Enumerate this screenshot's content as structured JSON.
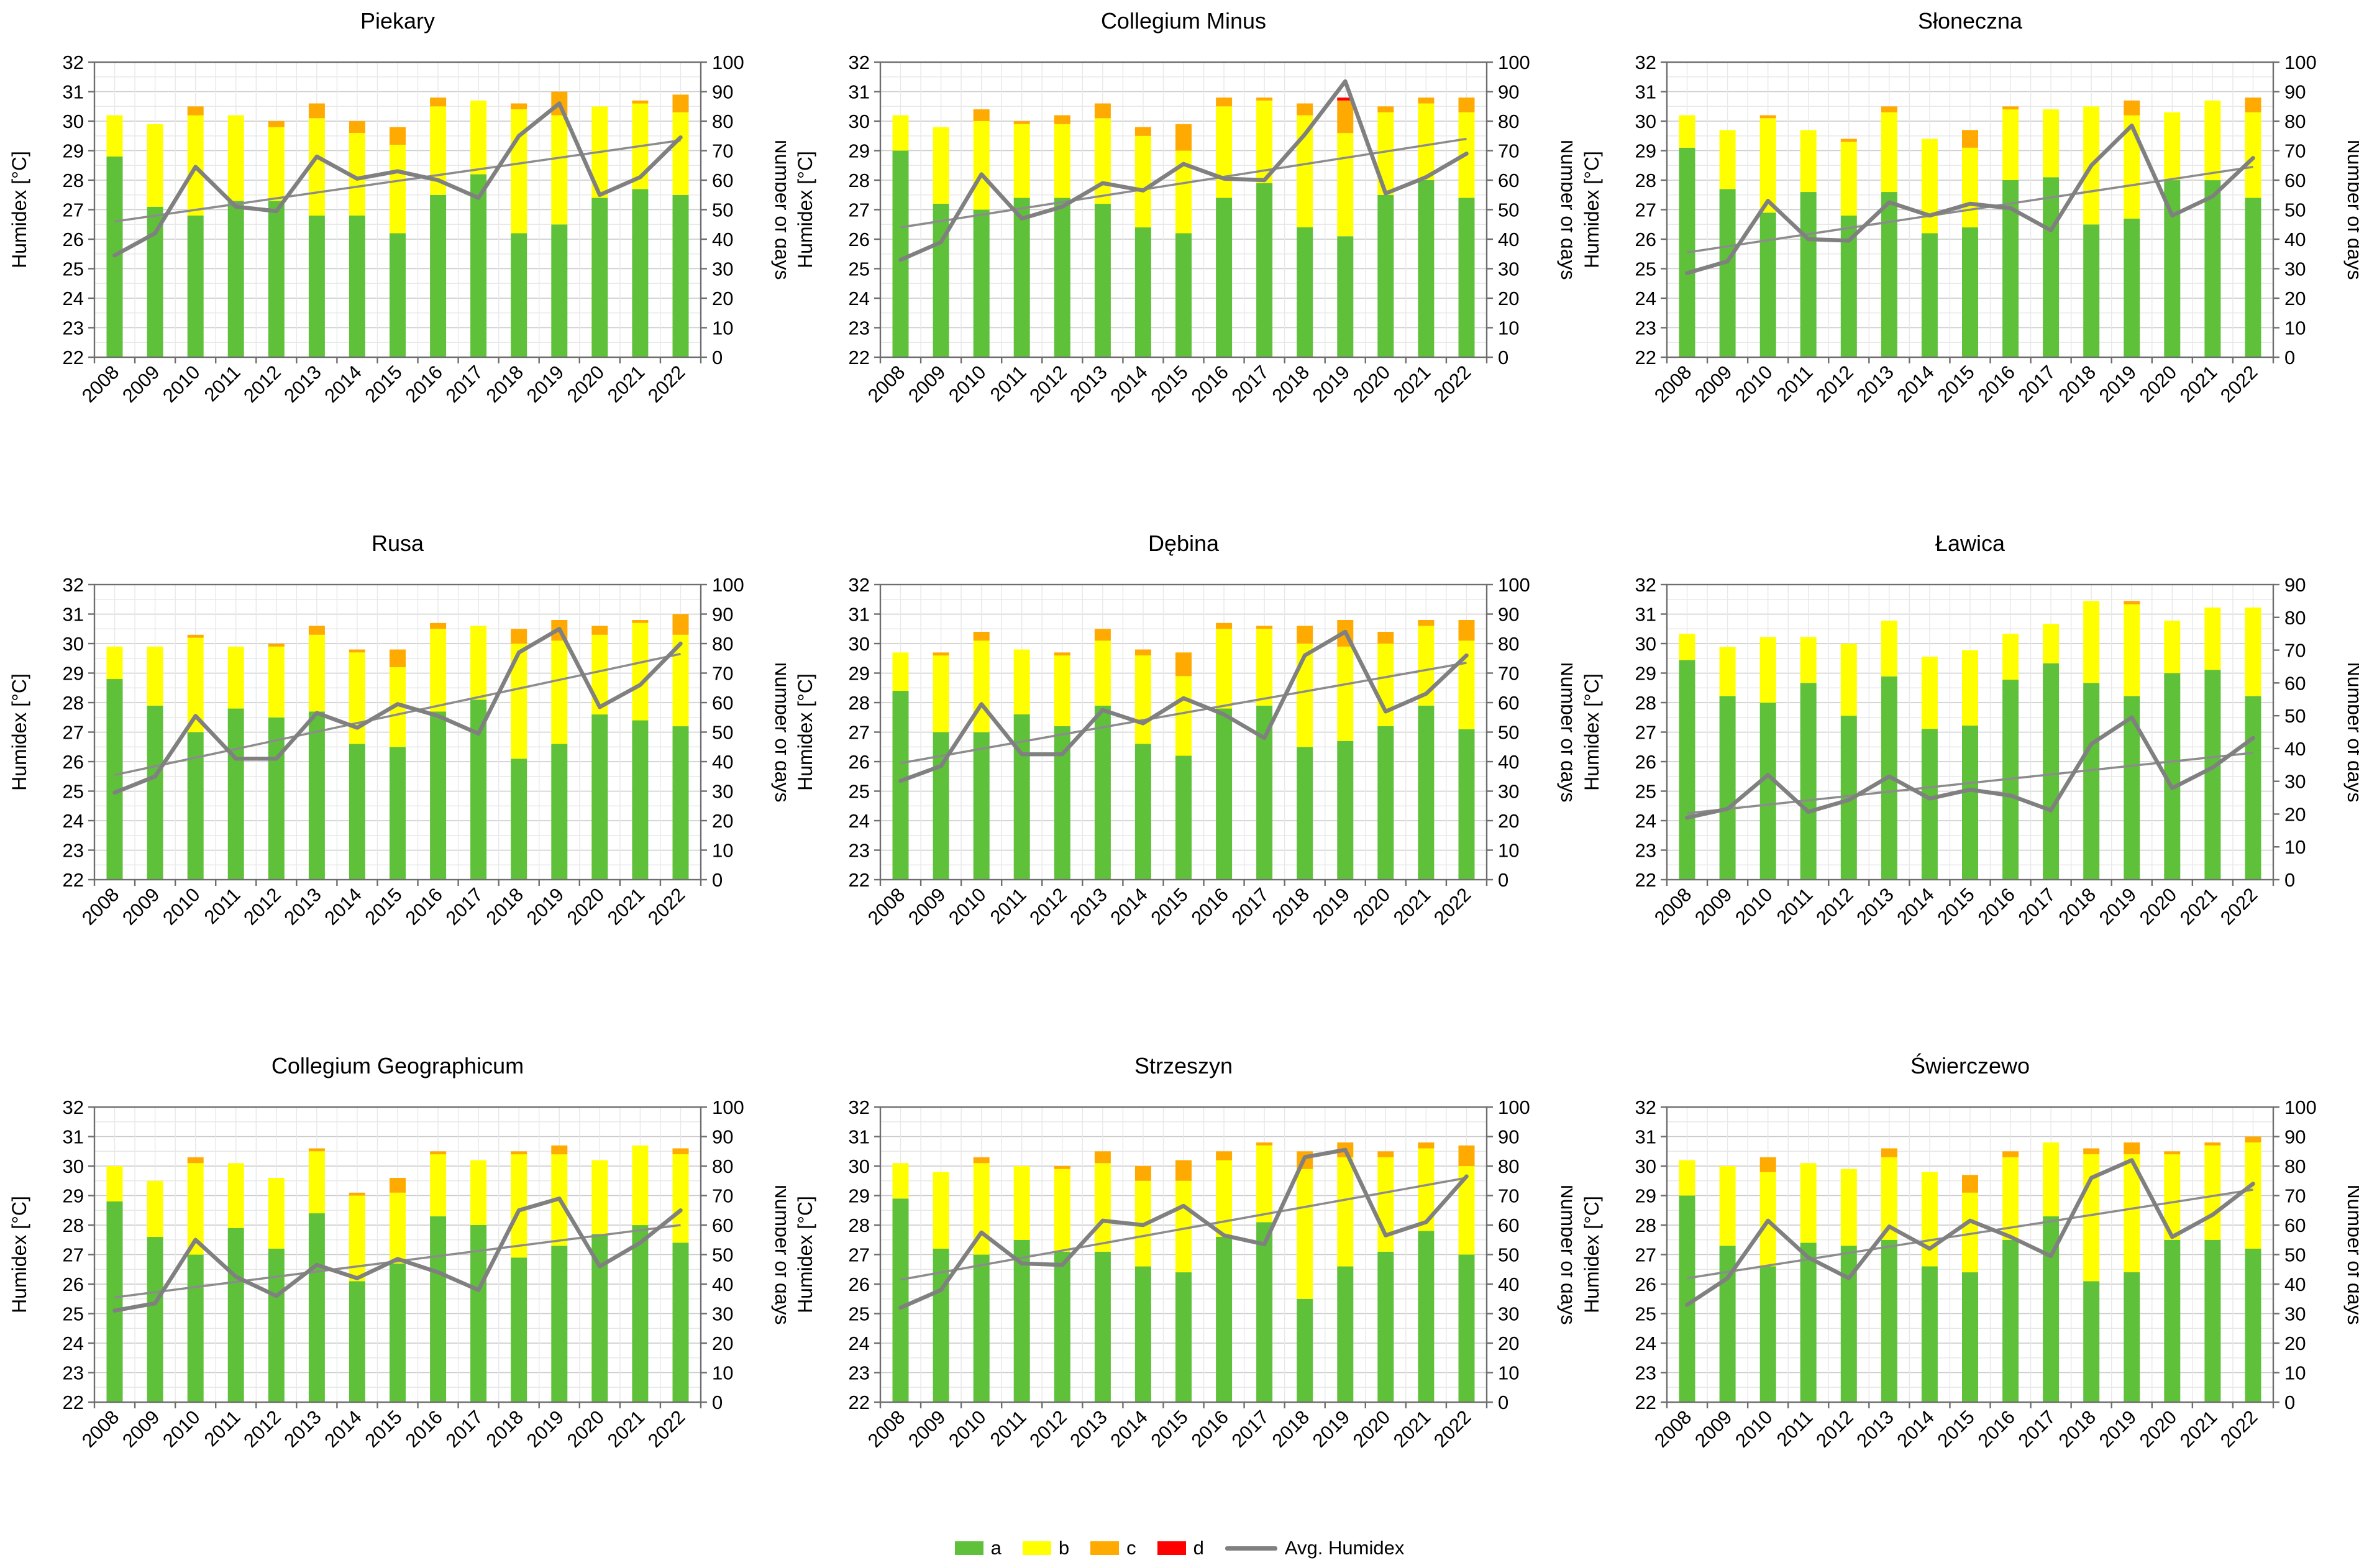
{
  "axes": {
    "left_label": "Humidex [°C]",
    "right_label": "Number of days",
    "left_min": 22,
    "left_max": 32,
    "left_tick_step": 1,
    "right_tick_step": 10
  },
  "colors": {
    "a": "#5FC13A",
    "b": "#FFFF00",
    "c": "#FFAA00",
    "d": "#FF0000",
    "avg": "#808080",
    "trend": "#8C8C8C",
    "grid_major": "#C9C9C9",
    "grid_minor": "#E8E8E8",
    "axis": "#6E6E6E"
  },
  "legend": {
    "items": [
      {
        "key": "a",
        "label": "a",
        "type": "swatch"
      },
      {
        "key": "b",
        "label": "b",
        "type": "swatch"
      },
      {
        "key": "c",
        "label": "c",
        "type": "swatch"
      },
      {
        "key": "d",
        "label": "d",
        "type": "swatch"
      },
      {
        "key": "avg",
        "label": "Avg. Humidex",
        "type": "line"
      }
    ]
  },
  "years": [
    "2008",
    "2009",
    "2010",
    "2011",
    "2012",
    "2013",
    "2014",
    "2015",
    "2016",
    "2017",
    "2018",
    "2019",
    "2020",
    "2021",
    "2022"
  ],
  "chart_data": [
    {
      "type": "bar+line",
      "title": "Piekary",
      "right_axis_max": 100,
      "series": [
        {
          "name": "a",
          "values": [
            68,
            51,
            48,
            53,
            53,
            48,
            48,
            42,
            55,
            62,
            42,
            45,
            54,
            57,
            55
          ]
        },
        {
          "name": "b",
          "values": [
            14,
            28,
            34,
            29,
            25,
            33,
            28,
            30,
            30,
            25,
            42,
            37,
            31,
            29,
            28
          ]
        },
        {
          "name": "c",
          "values": [
            0,
            0,
            3,
            0,
            2,
            5,
            4,
            6,
            3,
            0,
            2,
            8,
            0,
            1,
            6
          ]
        },
        {
          "name": "d",
          "values": [
            0,
            0,
            0,
            0,
            0,
            0,
            0,
            0,
            0,
            0,
            0,
            0,
            0,
            0,
            0
          ]
        }
      ],
      "avg_humidex": [
        25.45,
        26.2,
        28.45,
        27.1,
        26.95,
        28.8,
        28.05,
        28.3,
        28.0,
        27.4,
        29.5,
        30.6,
        27.5,
        28.1,
        29.45
      ],
      "trend_line": {
        "start": 26.6,
        "end": 29.35
      }
    },
    {
      "type": "bar+line",
      "title": "Collegium Minus",
      "right_axis_max": 100,
      "series": [
        {
          "name": "a",
          "values": [
            70,
            52,
            50,
            54,
            54,
            52,
            44,
            42,
            54,
            59,
            44,
            41,
            55,
            60,
            54
          ]
        },
        {
          "name": "b",
          "values": [
            12,
            26,
            30,
            25,
            25,
            29,
            31,
            28,
            31,
            28,
            38,
            35,
            28,
            26,
            29
          ]
        },
        {
          "name": "c",
          "values": [
            0,
            0,
            4,
            1,
            3,
            5,
            3,
            9,
            3,
            1,
            4,
            11,
            2,
            2,
            5
          ]
        },
        {
          "name": "d",
          "values": [
            0,
            0,
            0,
            0,
            0,
            0,
            0,
            0,
            0,
            0,
            0,
            1,
            0,
            0,
            0
          ]
        }
      ],
      "avg_humidex": [
        25.3,
        25.9,
        28.2,
        26.7,
        27.1,
        27.9,
        27.65,
        28.55,
        28.05,
        28.0,
        29.55,
        31.35,
        27.55,
        28.1,
        28.9
      ],
      "trend_line": {
        "start": 26.4,
        "end": 29.4
      }
    },
    {
      "type": "bar+line",
      "title": "Słoneczna",
      "right_axis_max": 100,
      "series": [
        {
          "name": "a",
          "values": [
            71,
            57,
            49,
            56,
            48,
            56,
            42,
            44,
            60,
            61,
            45,
            47,
            60,
            60,
            54
          ]
        },
        {
          "name": "b",
          "values": [
            11,
            20,
            32,
            21,
            25,
            27,
            32,
            27,
            24,
            23,
            40,
            35,
            23,
            27,
            29
          ]
        },
        {
          "name": "c",
          "values": [
            0,
            0,
            1,
            0,
            1,
            2,
            0,
            6,
            1,
            0,
            0,
            5,
            0,
            0,
            5
          ]
        },
        {
          "name": "d",
          "values": [
            0,
            0,
            0,
            0,
            0,
            0,
            0,
            0,
            0,
            0,
            0,
            0,
            0,
            0,
            0
          ]
        }
      ],
      "avg_humidex": [
        24.85,
        25.25,
        27.3,
        26.0,
        25.95,
        27.25,
        26.8,
        27.2,
        27.05,
        26.3,
        28.5,
        29.85,
        26.8,
        27.45,
        28.75
      ],
      "trend_line": {
        "start": 25.55,
        "end": 28.45
      }
    },
    {
      "type": "bar+line",
      "title": "Rusa",
      "right_axis_max": 100,
      "series": [
        {
          "name": "a",
          "values": [
            68,
            59,
            50,
            58,
            55,
            57,
            46,
            45,
            57,
            61,
            41,
            46,
            56,
            54,
            52
          ]
        },
        {
          "name": "b",
          "values": [
            11,
            20,
            32,
            21,
            24,
            26,
            31,
            27,
            28,
            25,
            39,
            35,
            27,
            33,
            31
          ]
        },
        {
          "name": "c",
          "values": [
            0,
            0,
            1,
            0,
            1,
            3,
            1,
            6,
            2,
            0,
            5,
            7,
            3,
            1,
            7
          ]
        },
        {
          "name": "d",
          "values": [
            0,
            0,
            0,
            0,
            0,
            0,
            0,
            0,
            0,
            0,
            0,
            0,
            0,
            0,
            0
          ]
        }
      ],
      "avg_humidex": [
        24.95,
        25.5,
        27.55,
        26.1,
        26.1,
        27.65,
        27.15,
        27.95,
        27.55,
        26.95,
        29.7,
        30.5,
        27.85,
        28.6,
        30.0
      ],
      "trend_line": {
        "start": 25.55,
        "end": 29.65
      }
    },
    {
      "type": "bar+line",
      "title": "Dębina",
      "right_axis_max": 100,
      "series": [
        {
          "name": "a",
          "values": [
            64,
            50,
            50,
            56,
            52,
            59,
            46,
            42,
            58,
            59,
            45,
            47,
            52,
            59,
            51
          ]
        },
        {
          "name": "b",
          "values": [
            13,
            26,
            31,
            22,
            24,
            22,
            30,
            27,
            27,
            26,
            35,
            32,
            28,
            27,
            30
          ]
        },
        {
          "name": "c",
          "values": [
            0,
            1,
            3,
            0,
            1,
            4,
            2,
            8,
            2,
            1,
            6,
            9,
            4,
            2,
            7
          ]
        },
        {
          "name": "d",
          "values": [
            0,
            0,
            0,
            0,
            0,
            0,
            0,
            0,
            0,
            0,
            0,
            0,
            0,
            0,
            0
          ]
        }
      ],
      "avg_humidex": [
        25.35,
        25.85,
        27.95,
        26.25,
        26.25,
        27.75,
        27.3,
        28.15,
        27.6,
        26.8,
        29.6,
        30.4,
        27.7,
        28.3,
        29.6
      ],
      "trend_line": {
        "start": 25.95,
        "end": 29.35
      }
    },
    {
      "type": "bar+line",
      "title": "Ławica",
      "right_axis_max": 90,
      "series": [
        {
          "name": "a",
          "values": [
            67,
            56,
            54,
            60,
            50,
            62,
            46,
            47,
            61,
            66,
            60,
            56,
            63,
            64,
            56
          ]
        },
        {
          "name": "b",
          "values": [
            8,
            15,
            20,
            14,
            22,
            17,
            22,
            23,
            14,
            12,
            25,
            28,
            16,
            19,
            27
          ]
        },
        {
          "name": "c",
          "values": [
            0,
            0,
            0,
            0,
            0,
            0,
            0,
            0,
            0,
            0,
            0,
            1,
            0,
            0,
            0
          ]
        },
        {
          "name": "d",
          "values": [
            0,
            0,
            0,
            0,
            0,
            0,
            0,
            0,
            0,
            0,
            0,
            0,
            0,
            0,
            0
          ]
        }
      ],
      "avg_humidex": [
        24.1,
        24.4,
        25.55,
        24.3,
        24.7,
        25.5,
        24.75,
        25.05,
        24.85,
        24.35,
        26.6,
        27.5,
        25.1,
        25.8,
        26.8
      ],
      "trend_line": {
        "start": 24.25,
        "end": 26.3
      }
    },
    {
      "type": "bar+line",
      "title": "Collegium Geographicum",
      "right_axis_max": 100,
      "series": [
        {
          "name": "a",
          "values": [
            68,
            56,
            50,
            59,
            52,
            64,
            41,
            47,
            63,
            60,
            49,
            53,
            57,
            60,
            54
          ]
        },
        {
          "name": "b",
          "values": [
            12,
            19,
            31,
            22,
            24,
            21,
            29,
            24,
            21,
            22,
            35,
            31,
            25,
            27,
            30
          ]
        },
        {
          "name": "c",
          "values": [
            0,
            0,
            2,
            0,
            0,
            1,
            1,
            5,
            1,
            0,
            1,
            3,
            0,
            0,
            2
          ]
        },
        {
          "name": "d",
          "values": [
            0,
            0,
            0,
            0,
            0,
            0,
            0,
            0,
            0,
            0,
            0,
            0,
            0,
            0,
            0
          ]
        }
      ],
      "avg_humidex": [
        25.1,
        25.35,
        27.5,
        26.25,
        25.6,
        26.65,
        26.2,
        26.85,
        26.4,
        25.8,
        28.5,
        28.9,
        26.6,
        27.4,
        28.5
      ],
      "trend_line": {
        "start": 25.55,
        "end": 28.0
      }
    },
    {
      "type": "bar+line",
      "title": "Strzeszyn",
      "right_axis_max": 100,
      "series": [
        {
          "name": "a",
          "values": [
            69,
            52,
            50,
            55,
            51,
            51,
            46,
            44,
            56,
            61,
            35,
            46,
            51,
            58,
            50
          ]
        },
        {
          "name": "b",
          "values": [
            12,
            26,
            31,
            25,
            28,
            30,
            29,
            31,
            26,
            26,
            44,
            37,
            32,
            28,
            30
          ]
        },
        {
          "name": "c",
          "values": [
            0,
            0,
            2,
            0,
            1,
            4,
            5,
            7,
            3,
            1,
            6,
            5,
            2,
            2,
            7
          ]
        },
        {
          "name": "d",
          "values": [
            0,
            0,
            0,
            0,
            0,
            0,
            0,
            0,
            0,
            0,
            0,
            0,
            0,
            0,
            0
          ]
        }
      ],
      "avg_humidex": [
        25.2,
        25.8,
        27.75,
        26.7,
        26.65,
        28.15,
        28.0,
        28.65,
        27.65,
        27.35,
        30.3,
        30.55,
        27.65,
        28.1,
        29.65
      ],
      "trend_line": {
        "start": 26.15,
        "end": 29.6
      }
    },
    {
      "type": "bar+line",
      "title": "Świerczewo",
      "right_axis_max": 100,
      "series": [
        {
          "name": "a",
          "values": [
            70,
            53,
            46,
            54,
            53,
            55,
            46,
            44,
            55,
            63,
            41,
            44,
            55,
            55,
            52
          ]
        },
        {
          "name": "b",
          "values": [
            12,
            27,
            32,
            27,
            26,
            28,
            32,
            27,
            28,
            25,
            43,
            40,
            29,
            32,
            36
          ]
        },
        {
          "name": "c",
          "values": [
            0,
            0,
            5,
            0,
            0,
            3,
            0,
            6,
            2,
            0,
            2,
            4,
            1,
            1,
            2
          ]
        },
        {
          "name": "d",
          "values": [
            0,
            0,
            0,
            0,
            0,
            0,
            0,
            0,
            0,
            0,
            0,
            0,
            0,
            0,
            0
          ]
        }
      ],
      "avg_humidex": [
        25.3,
        26.2,
        28.15,
        26.9,
        26.2,
        27.95,
        27.2,
        28.15,
        27.6,
        26.95,
        29.6,
        30.2,
        27.6,
        28.35,
        29.4
      ],
      "trend_line": {
        "start": 26.2,
        "end": 29.2
      }
    }
  ]
}
